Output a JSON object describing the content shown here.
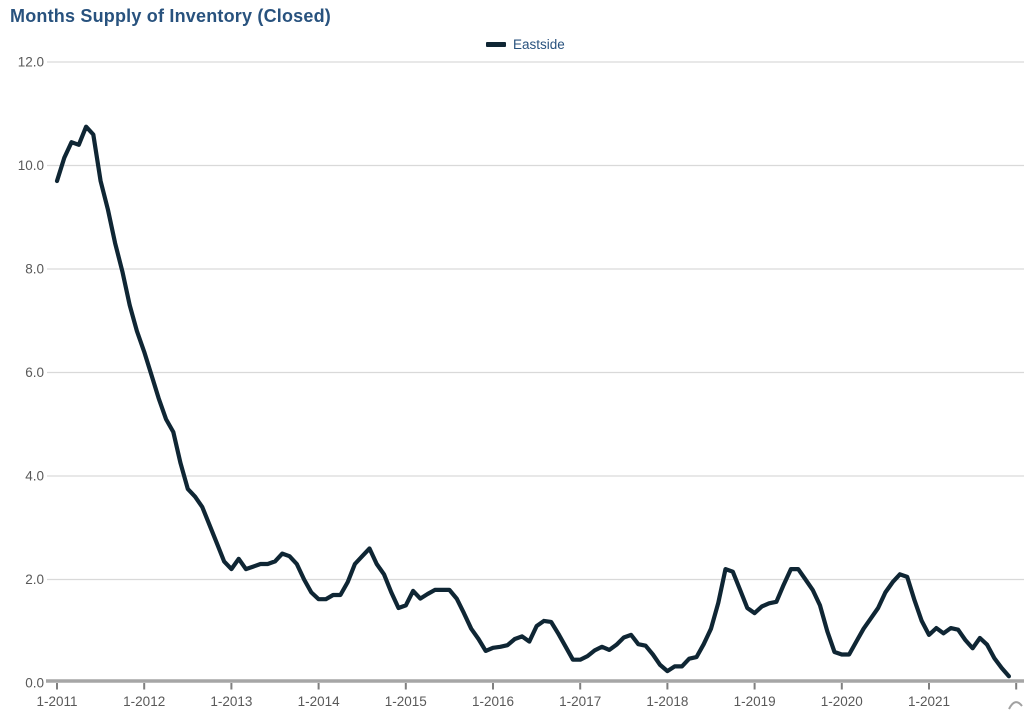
{
  "chart_data": {
    "type": "line",
    "title": "Months Supply of Inventory (Closed)",
    "legend_position": "top-center",
    "grid": "horizontal-only",
    "ylim": [
      0,
      12
    ],
    "y_tick_step": 2,
    "y_tick_labels": [
      "0.0",
      "2.0",
      "4.0",
      "6.0",
      "8.0",
      "10.0",
      "12.0"
    ],
    "x_tick_labels": [
      "1-2011",
      "1-2012",
      "1-2013",
      "1-2014",
      "1-2015",
      "1-2016",
      "1-2017",
      "1-2018",
      "1-2019",
      "1-2020",
      "1-2021"
    ],
    "x_unit": "month",
    "x_start": "2011-01",
    "x_step_months": 1,
    "x_end": "2021-12",
    "series": [
      {
        "name": "Eastside",
        "color": "#0f2634",
        "values": [
          9.7,
          10.15,
          10.45,
          10.4,
          10.75,
          10.6,
          9.7,
          9.15,
          8.5,
          7.95,
          7.3,
          6.8,
          6.4,
          5.95,
          5.5,
          5.1,
          4.85,
          4.25,
          3.75,
          3.6,
          3.4,
          3.05,
          2.7,
          2.35,
          2.2,
          2.4,
          2.2,
          2.25,
          2.3,
          2.3,
          2.35,
          2.5,
          2.45,
          2.3,
          2.0,
          1.75,
          1.62,
          1.62,
          1.7,
          1.7,
          1.95,
          2.3,
          2.45,
          2.6,
          2.3,
          2.1,
          1.75,
          1.45,
          1.5,
          1.78,
          1.63,
          1.72,
          1.8,
          1.8,
          1.8,
          1.63,
          1.35,
          1.05,
          0.85,
          0.62,
          0.68,
          0.7,
          0.73,
          0.85,
          0.9,
          0.8,
          1.1,
          1.2,
          1.18,
          0.95,
          0.7,
          0.45,
          0.45,
          0.52,
          0.63,
          0.7,
          0.64,
          0.74,
          0.88,
          0.93,
          0.75,
          0.72,
          0.55,
          0.35,
          0.23,
          0.32,
          0.32,
          0.47,
          0.5,
          0.75,
          1.05,
          1.55,
          2.2,
          2.15,
          1.8,
          1.45,
          1.35,
          1.48,
          1.54,
          1.57,
          1.9,
          2.2,
          2.2,
          2.0,
          1.8,
          1.5,
          1.0,
          0.6,
          0.55,
          0.55,
          0.8,
          1.05,
          1.25,
          1.45,
          1.75,
          1.95,
          2.1,
          2.05,
          1.6,
          1.2,
          0.93,
          1.06,
          0.96,
          1.06,
          1.03,
          0.83,
          0.67,
          0.87,
          0.74,
          0.48,
          0.29,
          0.13
        ]
      }
    ],
    "colors": {
      "title_text": "#28527e",
      "legend_text": "#28527e",
      "axis_label_text": "#595959",
      "gridline": "#d9d9d9",
      "axis_line": "#a6a6a6",
      "tick_mark": "#7f7f7f",
      "series_line": "#0f2634",
      "background": "#ffffff"
    }
  },
  "legend": {
    "items": [
      {
        "label": "Eastside"
      }
    ]
  }
}
